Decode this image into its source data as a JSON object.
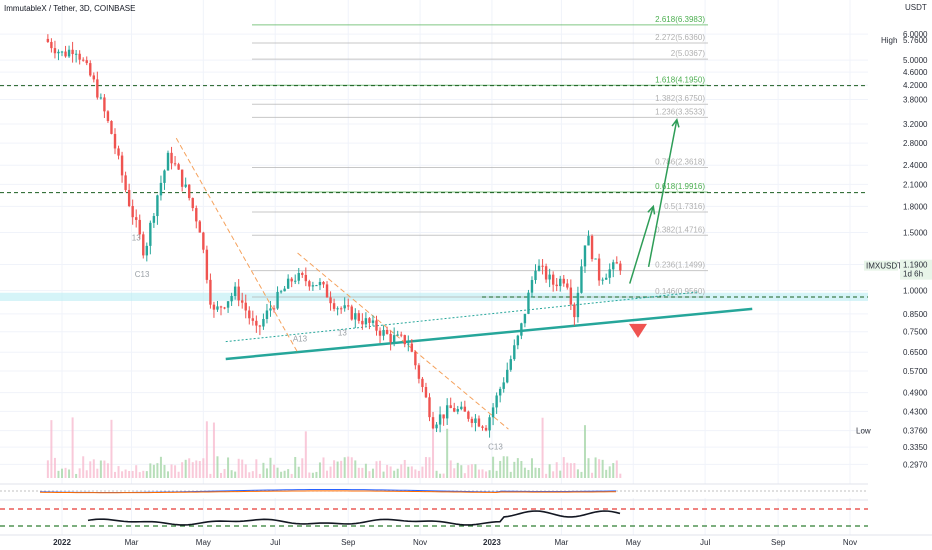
{
  "chart_data": {
    "type": "candlestick",
    "title": "ImmutableX / Tether, 3D, COINBASE",
    "symbol": "IMXUSDT",
    "y_axis_unit": "USDT",
    "scale": "log",
    "ylim": [
      0.27,
      7.0
    ],
    "y_ticks": [
      "6.0000",
      "5.0000",
      "4.6000",
      "4.2000",
      "3.8000",
      "3.2000",
      "2.8000",
      "2.4000",
      "2.1000",
      "1.8000",
      "1.5000",
      "1.2000",
      "1.0000",
      "0.8500",
      "0.7500",
      "0.6500",
      "0.5700",
      "0.4900",
      "0.4300",
      "0.3760",
      "0.3350",
      "0.2970"
    ],
    "x_ticks": [
      {
        "label": "2022",
        "date": "2022-01-01",
        "bold": true
      },
      {
        "label": "Mar",
        "date": "2022-03-01"
      },
      {
        "label": "May",
        "date": "2022-05-01"
      },
      {
        "label": "Jul",
        "date": "2022-07-01"
      },
      {
        "label": "Sep",
        "date": "2022-09-01"
      },
      {
        "label": "Nov",
        "date": "2022-11-01"
      },
      {
        "label": "2023",
        "date": "2023-01-01",
        "bold": true
      },
      {
        "label": "Mar",
        "date": "2023-03-01"
      },
      {
        "label": "May",
        "date": "2023-05-01"
      },
      {
        "label": "Jul",
        "date": "2023-07-01"
      },
      {
        "label": "Sep",
        "date": "2023-09-01"
      },
      {
        "label": "Nov",
        "date": "2023-11-01"
      }
    ],
    "price_path": [
      {
        "date": "2021-12-20",
        "price": 5.8
      },
      {
        "date": "2022-01-05",
        "price": 5.2
      },
      {
        "date": "2022-01-15",
        "price": 5.5
      },
      {
        "date": "2022-02-01",
        "price": 4.2
      },
      {
        "date": "2022-02-15",
        "price": 3.0
      },
      {
        "date": "2022-03-01",
        "price": 1.9
      },
      {
        "date": "2022-03-15",
        "price": 1.3
      },
      {
        "date": "2022-03-25",
        "price": 1.9
      },
      {
        "date": "2022-04-05",
        "price": 2.6
      },
      {
        "date": "2022-04-20",
        "price": 2.0
      },
      {
        "date": "2022-05-01",
        "price": 1.55
      },
      {
        "date": "2022-05-12",
        "price": 0.85
      },
      {
        "date": "2022-06-01",
        "price": 1.0
      },
      {
        "date": "2022-06-18",
        "price": 0.75
      },
      {
        "date": "2022-07-01",
        "price": 0.9
      },
      {
        "date": "2022-07-20",
        "price": 1.1
      },
      {
        "date": "2022-08-10",
        "price": 1.05
      },
      {
        "date": "2022-08-25",
        "price": 0.9
      },
      {
        "date": "2022-09-20",
        "price": 0.8
      },
      {
        "date": "2022-10-10",
        "price": 0.72
      },
      {
        "date": "2022-10-25",
        "price": 0.7
      },
      {
        "date": "2022-11-08",
        "price": 0.48
      },
      {
        "date": "2022-11-15",
        "price": 0.4
      },
      {
        "date": "2022-12-01",
        "price": 0.44
      },
      {
        "date": "2022-12-20",
        "price": 0.41
      },
      {
        "date": "2022-12-30",
        "price": 0.39
      },
      {
        "date": "2023-01-15",
        "price": 0.55
      },
      {
        "date": "2023-01-28",
        "price": 0.75
      },
      {
        "date": "2023-02-10",
        "price": 1.2
      },
      {
        "date": "2023-02-25",
        "price": 1.05
      },
      {
        "date": "2023-03-08",
        "price": 1.1
      },
      {
        "date": "2023-03-15",
        "price": 0.85
      },
      {
        "date": "2023-03-25",
        "price": 1.5
      },
      {
        "date": "2023-04-05",
        "price": 1.1
      },
      {
        "date": "2023-04-20",
        "price": 1.19
      }
    ],
    "fib_levels": [
      {
        "label": "2.618(6.3983)",
        "ratio": 2.618,
        "price": 6.3983,
        "color": "#4caf50"
      },
      {
        "label": "2.272(5.6360)",
        "ratio": 2.272,
        "price": 5.636,
        "color": "#b0b0b0"
      },
      {
        "label": "2(5.0367)",
        "ratio": 2,
        "price": 5.0367,
        "color": "#b0b0b0"
      },
      {
        "label": "1.618(4.1950)",
        "ratio": 1.618,
        "price": 4.195,
        "color": "#4caf50"
      },
      {
        "label": "1.382(3.6750)",
        "ratio": 1.382,
        "price": 3.675,
        "color": "#b0b0b0"
      },
      {
        "label": "1.236(3.3533)",
        "ratio": 1.236,
        "price": 3.3533,
        "color": "#b0b0b0"
      },
      {
        "label": "0.786(2.3618)",
        "ratio": 0.786,
        "price": 2.3618,
        "color": "#b0b0b0"
      },
      {
        "label": "0.618(1.9916)",
        "ratio": 0.618,
        "price": 1.9916,
        "color": "#4caf50"
      },
      {
        "label": "0.5(1.7316)",
        "ratio": 0.5,
        "price": 1.7316,
        "color": "#b0b0b0"
      },
      {
        "label": "0.382(1.4716)",
        "ratio": 0.382,
        "price": 1.4716,
        "color": "#b0b0b0"
      },
      {
        "label": "0.236(1.1499)",
        "ratio": 0.236,
        "price": 1.1499,
        "color": "#b0b0b0"
      },
      {
        "label": "0.146(0.9560)",
        "ratio": 0.146,
        "price": 0.956,
        "color": "#b0b0b0"
      }
    ],
    "horizontal_lines": [
      {
        "price": 4.1854,
        "label": "4.1854"
      },
      {
        "price": 1.9824,
        "label": "1.9824"
      },
      {
        "price": 0.956,
        "label": "0.9560"
      }
    ],
    "price_tags": {
      "high_label": "High",
      "high_value": "5.7600",
      "high_price": 5.76,
      "current_symbol": "IMXUSDT",
      "current_value": "1.1900",
      "current_price": 1.19,
      "countdown": "1d 6h",
      "low_label": "Low",
      "low_value": "0.3760",
      "low_price": 0.376
    },
    "trendlines": [
      {
        "kind": "support",
        "color": "#26a69a",
        "from": {
          "date": "2022-05-20",
          "price": 0.62
        },
        "to": {
          "date": "2023-08-10",
          "price": 0.88
        }
      },
      {
        "kind": "support-dotted",
        "color": "#26a69a",
        "from": {
          "date": "2022-05-20",
          "price": 0.7
        },
        "to": {
          "date": "2023-06-25",
          "price": 0.99
        }
      },
      {
        "kind": "resistance",
        "color": "#f5a25d",
        "from": {
          "date": "2022-04-08",
          "price": 2.9
        },
        "to": {
          "date": "2022-07-20",
          "price": 0.65
        }
      },
      {
        "kind": "resistance",
        "color": "#f5a25d",
        "from": {
          "date": "2022-07-20",
          "price": 1.3
        },
        "to": {
          "date": "2023-01-15",
          "price": 0.38
        }
      }
    ],
    "projection_arrows": [
      {
        "from": {
          "date": "2023-04-28",
          "price": 1.05
        },
        "to": {
          "date": "2023-05-18",
          "price": 1.8
        }
      },
      {
        "from": {
          "date": "2023-05-14",
          "price": 1.18
        },
        "to": {
          "date": "2023-06-07",
          "price": 3.3
        }
      }
    ],
    "markers": [
      {
        "text": "13",
        "date": "2022-03-05",
        "price": 1.42,
        "color": "#e53935"
      },
      {
        "text": "C13",
        "date": "2022-03-10",
        "price": 1.1,
        "color": "#a0a0a0"
      },
      {
        "text": "A13",
        "date": "2022-07-22",
        "price": 0.7,
        "color": "#a0a0a0"
      },
      {
        "text": "13",
        "date": "2022-08-27",
        "price": 0.73,
        "color": "#e53935"
      },
      {
        "text": "C13",
        "date": "2023-01-04",
        "price": 0.33,
        "color": "#a0a0a0"
      }
    ],
    "indicator_values": {
      "macd": "-0.0143",
      "rsi": "56.25"
    }
  }
}
